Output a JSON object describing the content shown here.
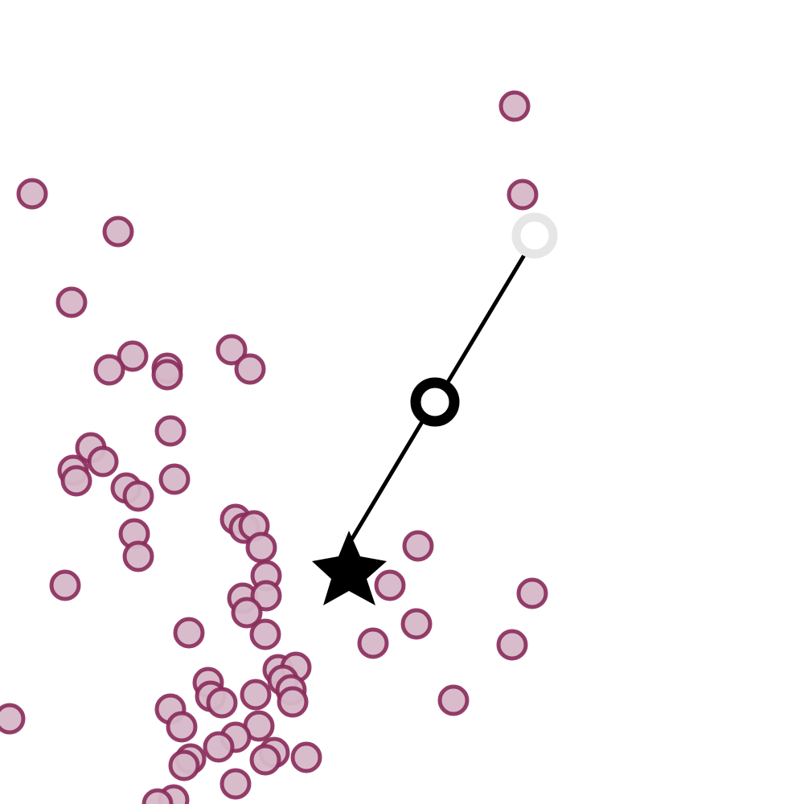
{
  "colors": {
    "background": "#ffffff",
    "dot_fill": "#d6b8c8",
    "dot_stroke": "#8a2a5a",
    "path_line": "#000000",
    "start_ring": "#e6e6e6",
    "midpoint_ring": "#000000",
    "goal_star": "#000000"
  },
  "icons": {
    "goal": "star-icon",
    "start": "ring-icon",
    "midpoint": "ring-icon"
  }
}
